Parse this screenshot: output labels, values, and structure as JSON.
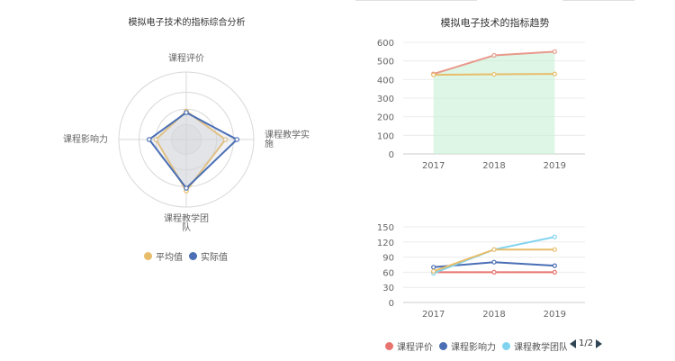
{
  "chart_data": [
    {
      "type": "radar",
      "title": "模拟电子技术的指标综合分析",
      "indicators": [
        "课程评价",
        "课程教学实施",
        "课程教学团队",
        "课程影响力"
      ],
      "max": 100,
      "series": [
        {
          "name": "平均值",
          "values": [
            42,
            58,
            76,
            45
          ],
          "color": "#e8bd6a"
        },
        {
          "name": "实际值",
          "values": [
            40,
            75,
            72,
            55
          ],
          "color": "#4a6fb5"
        }
      ],
      "legend": [
        "平均值",
        "实际值"
      ]
    },
    {
      "type": "line",
      "title": "模拟电子技术的指标趋势",
      "categories": [
        "2017",
        "2018",
        "2019"
      ],
      "ylim": [
        0,
        600
      ],
      "yticks": [
        0,
        100,
        200,
        300,
        400,
        500,
        600
      ],
      "series": [
        {
          "values": [
            430,
            530,
            550
          ],
          "color": "#e8998b",
          "area": "#c8f0d6"
        },
        {
          "values": [
            425,
            428,
            430
          ],
          "color": "#e8bd6a"
        }
      ]
    },
    {
      "type": "line",
      "categories": [
        "2017",
        "2018",
        "2019"
      ],
      "ylim": [
        0,
        150
      ],
      "yticks": [
        0,
        30,
        60,
        90,
        120,
        150
      ],
      "series": [
        {
          "name": "课程评价",
          "values": [
            60,
            60,
            60
          ],
          "color": "#e8746f"
        },
        {
          "name": "课程影响力",
          "values": [
            70,
            80,
            73
          ],
          "color": "#4a6fb5"
        },
        {
          "name": "课程教学团队",
          "values": [
            58,
            105,
            130
          ],
          "color": "#7fd3ef"
        },
        {
          "values": [
            62,
            105,
            105
          ],
          "color": "#e8bd6a"
        }
      ]
    }
  ],
  "bottom_legend": {
    "items": [
      {
        "label": "课程评价",
        "color": "#e8746f"
      },
      {
        "label": "课程影响力",
        "color": "#4a6fb5"
      },
      {
        "label": "课程教学团队",
        "color": "#7fd3ef"
      }
    ],
    "pager": "1/2"
  }
}
